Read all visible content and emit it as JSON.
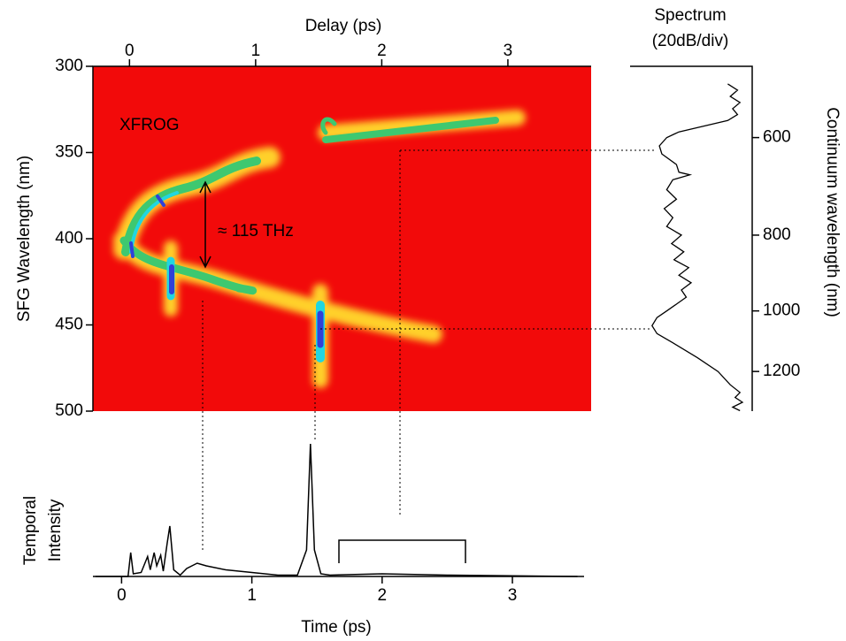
{
  "chart_data": [
    {
      "type": "heatmap",
      "xlabel": "Delay (ps)",
      "ylabel": "SFG Wavelength (nm)",
      "annotations": [
        "XFROG",
        "≈ 115 THz"
      ],
      "xlim": [
        -0.29,
        3.66
      ],
      "xticks": [
        0,
        1,
        2,
        3
      ],
      "ylim": [
        500,
        300
      ],
      "yticks": [
        300,
        350,
        400,
        450,
        500
      ],
      "color": "#f20a0a"
    },
    {
      "type": "spectrum",
      "title": [
        "Spectrum",
        "(20dB/div)"
      ],
      "ylabel": "Continuum wavelength (nm)",
      "x": [
        510,
        520,
        530,
        540,
        550,
        560,
        570,
        580,
        590,
        600,
        615,
        630,
        650,
        665,
        670,
        680,
        700,
        720,
        740,
        760,
        780,
        800,
        820,
        840,
        860,
        880,
        900,
        920,
        940,
        960,
        980,
        1000,
        1020,
        1045,
        1070,
        1100,
        1150,
        1200,
        1250,
        1280,
        1300,
        1320,
        1340,
        1355
      ],
      "values": [
        80,
        88,
        82,
        90,
        84,
        88,
        80,
        60,
        40,
        30,
        24,
        26,
        38,
        40,
        49,
        35,
        30,
        38,
        28,
        35,
        30,
        42,
        34,
        44,
        36,
        48,
        40,
        50,
        42,
        46,
        38,
        30,
        22,
        18,
        22,
        35,
        55,
        72,
        82,
        90,
        86,
        92,
        84,
        90
      ],
      "xlim": [
        0,
        100
      ],
      "ylim": [
        1357,
        483
      ],
      "yticks": [
        600,
        800,
        1000,
        1200
      ],
      "color": "#000000"
    },
    {
      "type": "line",
      "ylabel": [
        "Temporal",
        "Intensity"
      ],
      "xlabel": "Time (ps)",
      "x": [
        -0.2,
        0.05,
        0.07,
        0.09,
        0.15,
        0.2,
        0.22,
        0.25,
        0.27,
        0.3,
        0.32,
        0.35,
        0.37,
        0.4,
        0.45,
        0.5,
        0.58,
        0.65,
        0.8,
        1.0,
        1.2,
        1.35,
        1.42,
        1.45,
        1.48,
        1.53,
        1.6,
        2.0,
        2.5,
        3.5
      ],
      "values": [
        0,
        0,
        18,
        2,
        3,
        15,
        5,
        18,
        8,
        16,
        4,
        25,
        38,
        5,
        1,
        6,
        10,
        8,
        5,
        3,
        1,
        1,
        20,
        100,
        20,
        2,
        1,
        2,
        1,
        0
      ],
      "xlim": [
        -0.22,
        3.55
      ],
      "xticks": [
        0,
        1,
        2,
        3
      ],
      "ylim": [
        0,
        100
      ],
      "color": "#000000"
    }
  ]
}
